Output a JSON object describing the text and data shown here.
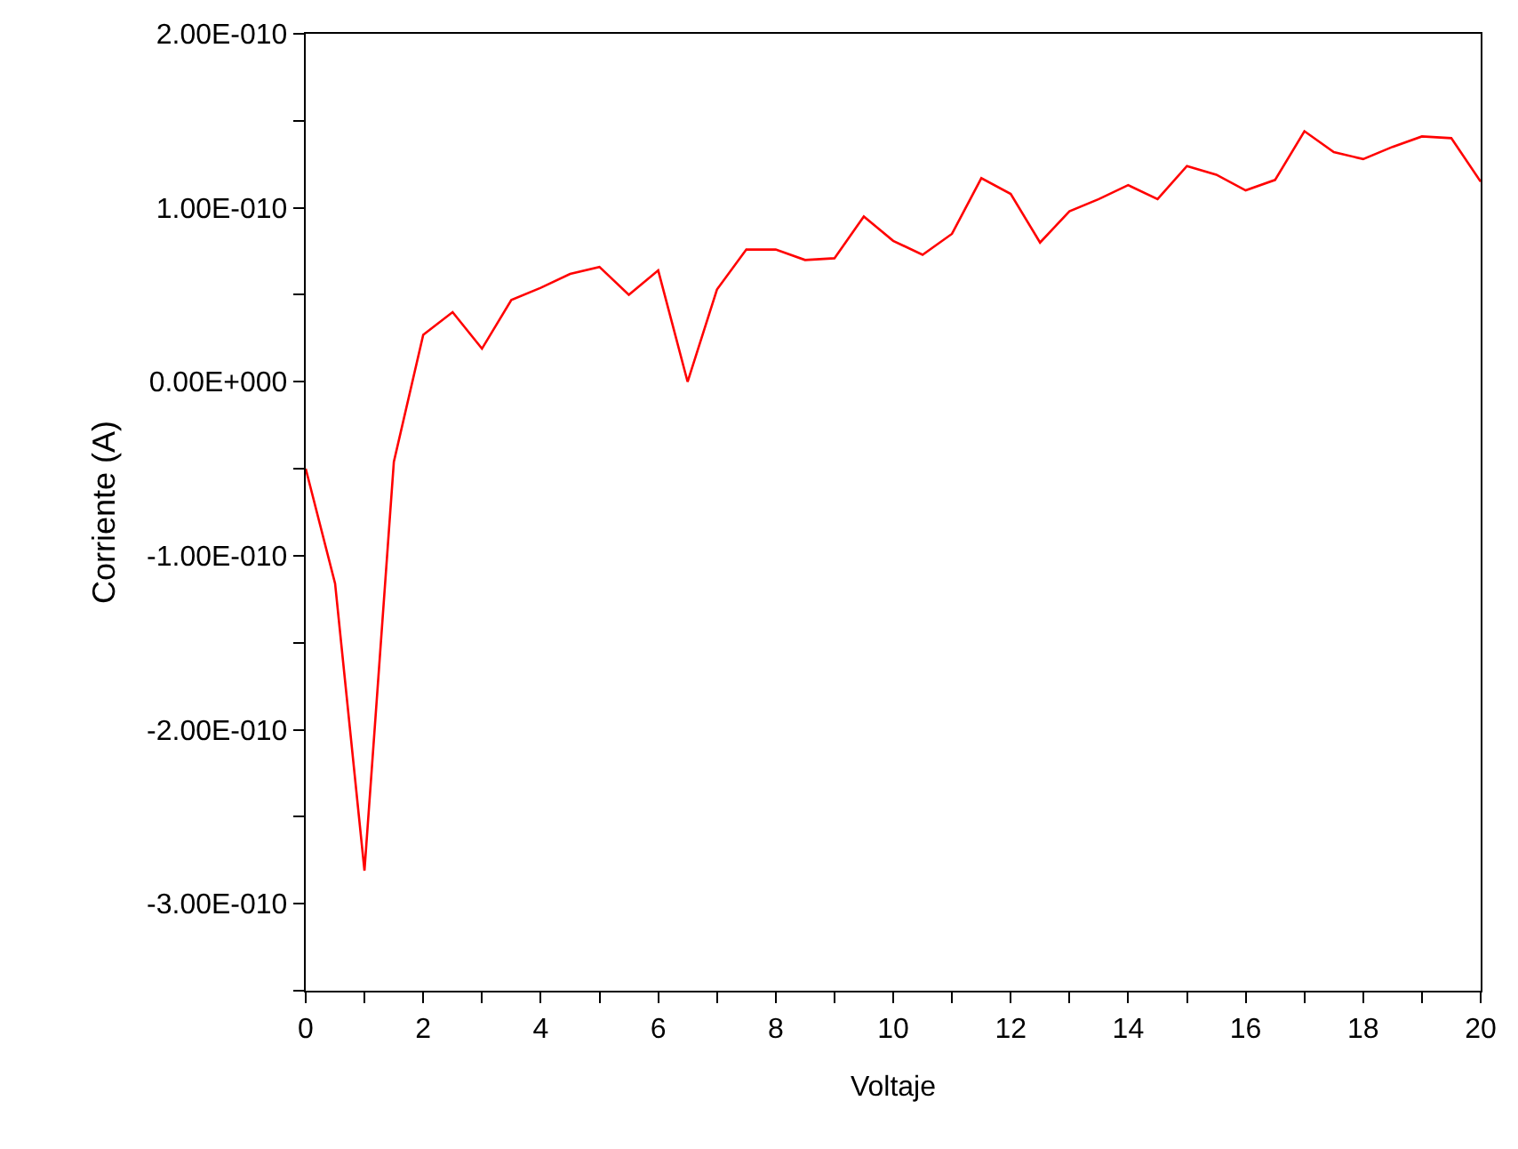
{
  "chart_data": {
    "type": "line",
    "xlabel": "Voltaje",
    "ylabel": "Corriente (A)",
    "x": [
      0,
      0.5,
      1,
      1.5,
      2,
      2.5,
      3,
      3.5,
      4,
      4.5,
      5,
      5.5,
      6,
      6.5,
      7,
      7.5,
      8,
      8.5,
      9,
      9.5,
      10,
      10.5,
      11,
      11.5,
      12,
      12.5,
      13,
      13.5,
      14,
      14.5,
      15,
      15.5,
      16,
      16.5,
      17,
      17.5,
      18,
      18.5,
      19,
      19.5,
      20
    ],
    "series": [
      {
        "color": "#ff0000",
        "values": [
          -5e-11,
          -1.16e-10,
          -2.81e-10,
          -4.6e-11,
          2.7e-11,
          4e-11,
          1.9e-11,
          4.7e-11,
          5.4e-11,
          6.2e-11,
          6.6e-11,
          5e-11,
          6.4e-11,
          0.0,
          5.3e-11,
          7.6e-11,
          7.6e-11,
          7e-11,
          7.1e-11,
          9.5e-11,
          8.1e-11,
          7.3e-11,
          8.5e-11,
          1.17e-10,
          1.08e-10,
          8e-11,
          9.8e-11,
          1.05e-10,
          1.13e-10,
          1.05e-10,
          1.24e-10,
          1.19e-10,
          1.1e-10,
          1.16e-10,
          1.44e-10,
          1.32e-10,
          1.28e-10,
          1.35e-10,
          1.41e-10,
          1.4e-10,
          1.15e-10
        ]
      }
    ],
    "xlim": [
      0,
      20
    ],
    "xticks": [
      0,
      {
        "value": 1,
        "label": null
      },
      2,
      {
        "value": 3,
        "label": null
      },
      4,
      {
        "value": 5,
        "label": null
      },
      6,
      {
        "value": 7,
        "label": null
      },
      8,
      {
        "value": 9,
        "label": null
      },
      10,
      {
        "value": 11,
        "label": null
      },
      12,
      {
        "value": 13,
        "label": null
      },
      14,
      {
        "value": 15,
        "label": null
      },
      16,
      {
        "value": 17,
        "label": null
      },
      18,
      {
        "value": 19,
        "label": null
      },
      20
    ],
    "ylim": [
      -3.5e-10,
      2e-10
    ],
    "yticks": [
      {
        "value": -3.5e-10,
        "label": null
      },
      {
        "value": -3e-10,
        "label": "-3.00E-010"
      },
      {
        "value": -2.5e-10,
        "label": null
      },
      {
        "value": -2e-10,
        "label": "-2.00E-010"
      },
      {
        "value": -1.5e-10,
        "label": null
      },
      {
        "value": -1e-10,
        "label": "-1.00E-010"
      },
      {
        "value": -5e-11,
        "label": null
      },
      {
        "value": 0,
        "label": "0.00E+000"
      },
      {
        "value": 5e-11,
        "label": null
      },
      {
        "value": 1e-10,
        "label": "1.00E-010"
      },
      {
        "value": 1.5e-10,
        "label": null
      },
      {
        "value": 2e-10,
        "label": "2.00E-010"
      }
    ],
    "marker": "none",
    "line_style": "solid"
  }
}
